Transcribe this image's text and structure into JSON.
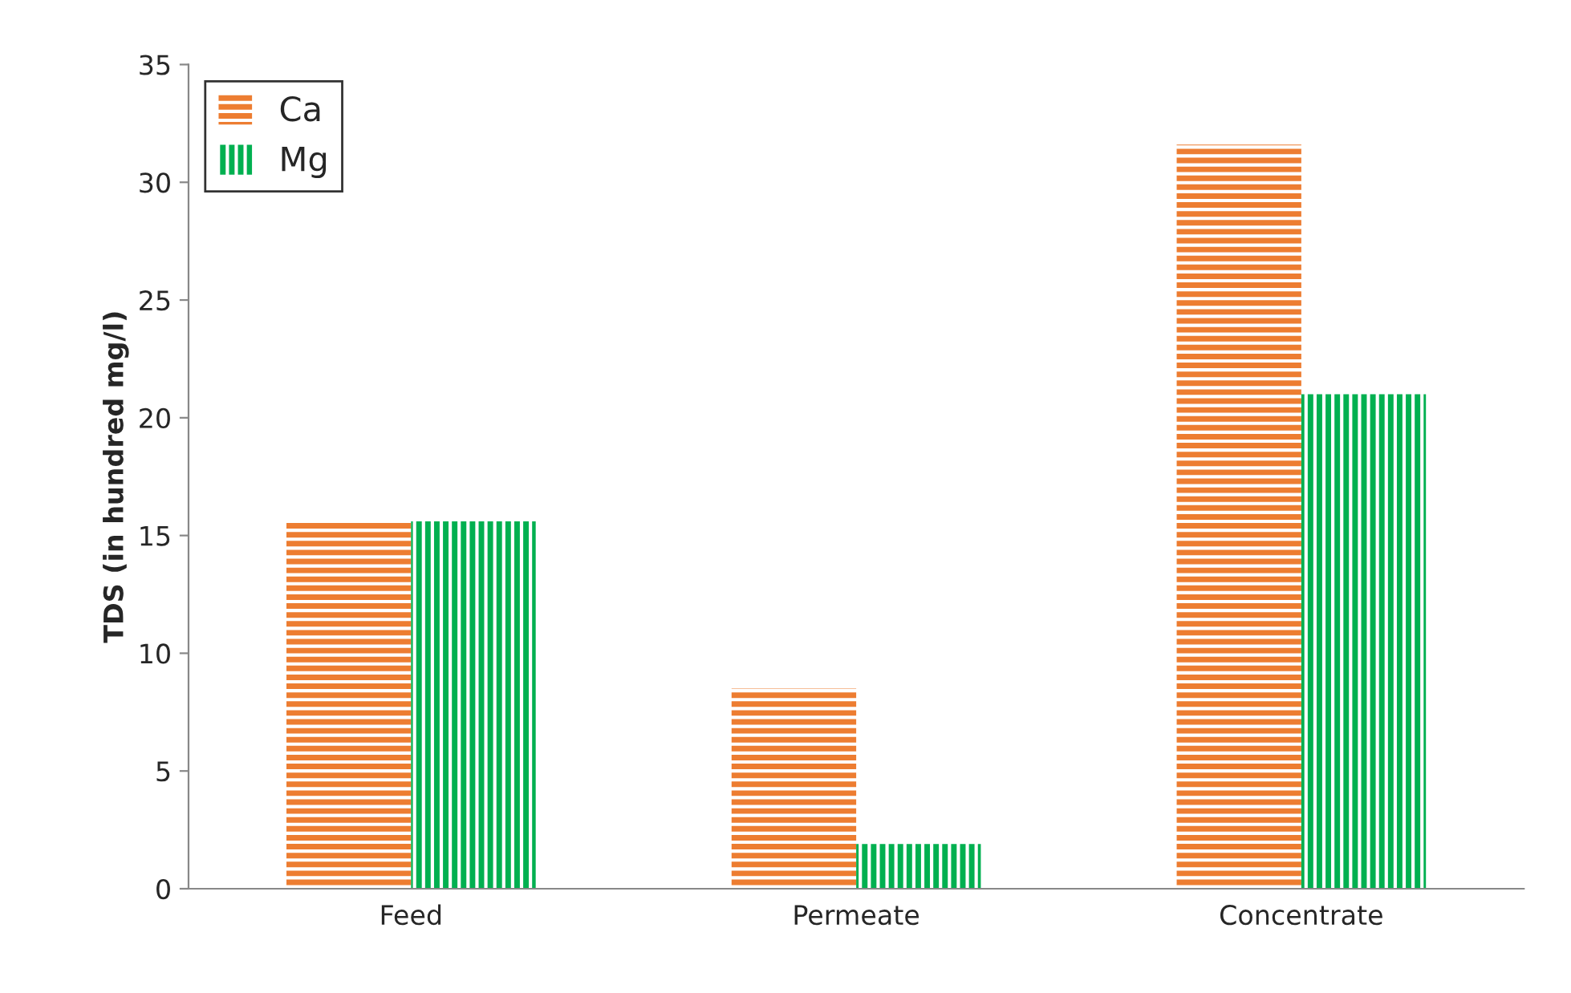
{
  "chart_data": {
    "type": "bar",
    "ylabel": "TDS (in hundred mg/l)",
    "categories": [
      "Feed",
      "Permeate",
      "Concentrate"
    ],
    "series": [
      {
        "name": "Ca",
        "color": "#ed7d31",
        "values": [
          15.6,
          8.5,
          31.6
        ]
      },
      {
        "name": "Mg",
        "color": "#00b050",
        "values": [
          15.6,
          1.9,
          21.0
        ]
      }
    ],
    "ylim": [
      0,
      35
    ],
    "yticks": [
      0,
      5,
      10,
      15,
      20,
      25,
      30,
      35
    ],
    "grid": false,
    "legend": "top left"
  }
}
